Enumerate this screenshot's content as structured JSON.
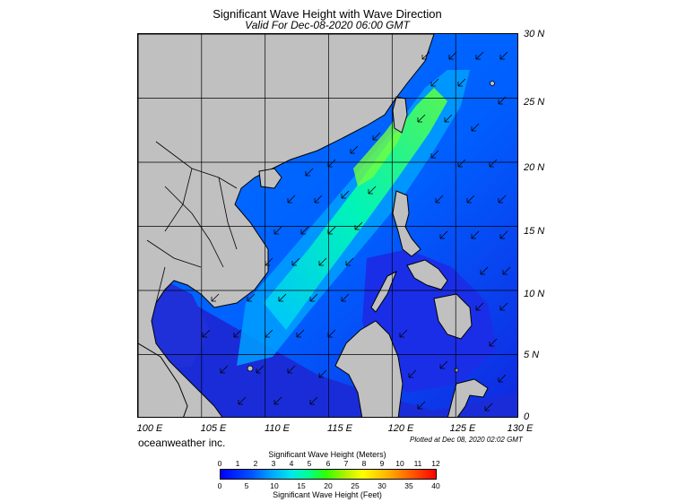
{
  "title": "Significant Wave Height with Wave Direction",
  "subtitle": "Valid For Dec-08-2020 06:00 GMT",
  "axes": {
    "lon_ticks": [
      "100 E",
      "105 E",
      "110 E",
      "115 E",
      "120 E",
      "125 E",
      "130 E"
    ],
    "lat_ticks": [
      "30 N",
      "25 N",
      "20 N",
      "15 N",
      "10 N",
      "5 N",
      "0"
    ]
  },
  "credit": "oceanweather inc.",
  "plotted": "Plotted at Dec 08, 2020 02:02 GMT",
  "colorbar": {
    "meters_title": "Significant Wave Height (Meters)",
    "meters_ticks": [
      "0",
      "1",
      "2",
      "3",
      "4",
      "5",
      "6",
      "7",
      "8",
      "9",
      "10",
      "11",
      "12"
    ],
    "feet_title": "Significant Wave Height (Feet)",
    "feet_ticks": [
      "0",
      "5",
      "10",
      "15",
      "20",
      "25",
      "30",
      "35",
      "40"
    ],
    "meters_range": [
      0,
      12
    ],
    "feet_range": [
      0,
      40
    ]
  },
  "colors": {
    "land": "#c0c0c0",
    "calm_sea": "#1f2ef0",
    "moderate_sea": "#0090ff",
    "rough_sea": "#00e8d0",
    "peak_sea": "#40ff40",
    "grid": "#000000"
  },
  "icons": [
    "wave-direction-arrow-icon"
  ]
}
